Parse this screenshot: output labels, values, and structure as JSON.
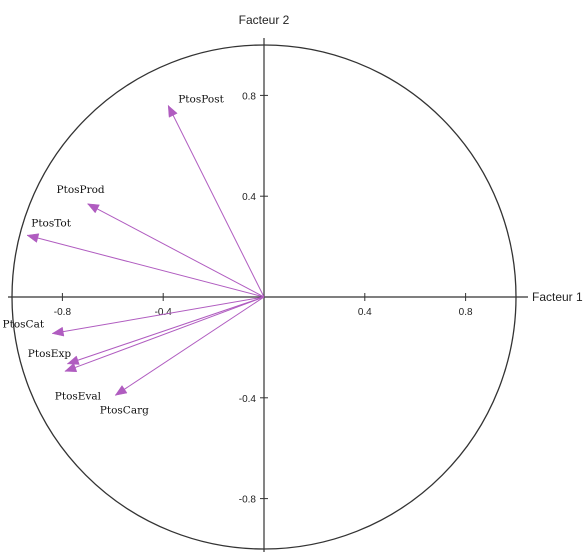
{
  "chart_data": {
    "type": "scatter",
    "title": "",
    "xlabel": "Facteur 1",
    "ylabel": "Facteur 2",
    "xlim": [
      -1,
      1
    ],
    "ylim": [
      -1,
      1
    ],
    "x_ticks": [
      -0.8,
      -0.4,
      0.4,
      0.8
    ],
    "y_ticks": [
      0.8,
      0.4,
      -0.4,
      -0.8
    ],
    "x_tick_labels": [
      "-0.8",
      "-0.4",
      "0.4",
      "0.8"
    ],
    "y_tick_labels": [
      "0.8",
      "0.4",
      "-0.4",
      "-0.8"
    ],
    "grid": false,
    "unit_circle": true,
    "vector_color": "#b05cc0",
    "vectors": [
      {
        "name": "PtosPost",
        "x": -0.38,
        "y": 0.76
      },
      {
        "name": "PtosProd",
        "x": -0.7,
        "y": 0.37
      },
      {
        "name": "PtosTot",
        "x": -0.94,
        "y": 0.245
      },
      {
        "name": "PtosCat",
        "x": -0.84,
        "y": -0.145
      },
      {
        "name": "PtosExp",
        "x": -0.78,
        "y": -0.265
      },
      {
        "name": "PtosEval",
        "x": -0.79,
        "y": -0.295
      },
      {
        "name": "PtosCarg",
        "x": -0.59,
        "y": -0.39
      }
    ]
  }
}
